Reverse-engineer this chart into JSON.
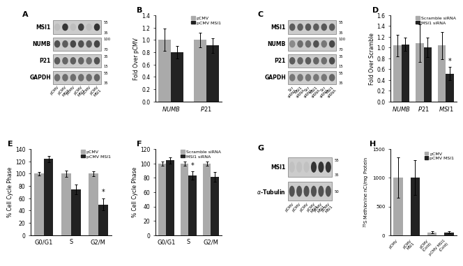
{
  "B": {
    "categories": [
      "NUMB",
      "P21"
    ],
    "pCMV": [
      1.0,
      1.0
    ],
    "pCMV_MSI1": [
      0.8,
      0.91
    ],
    "pCMV_err": [
      0.18,
      0.12
    ],
    "pCMV_MSI1_err": [
      0.1,
      0.12
    ],
    "ylabel": "Fold Over pCMV",
    "ylim": [
      0.0,
      1.4
    ],
    "yticks": [
      0.0,
      0.2,
      0.4,
      0.6,
      0.8,
      1.0,
      1.2,
      1.4
    ],
    "legend": [
      "pCMV",
      "pCMV MSI1"
    ],
    "colors": [
      "#aaaaaa",
      "#222222"
    ]
  },
  "D": {
    "categories": [
      "NUMB",
      "P21",
      "MSI1"
    ],
    "scramble": [
      1.04,
      1.08,
      1.04
    ],
    "MSI1_siRNA": [
      1.06,
      1.0,
      0.52
    ],
    "scramble_err": [
      0.2,
      0.35,
      0.25
    ],
    "MSI1_siRNA_err": [
      0.12,
      0.18,
      0.12
    ],
    "ylabel": "Fold Over Scramble",
    "ylim": [
      0.0,
      1.6
    ],
    "yticks": [
      0.0,
      0.2,
      0.4,
      0.6,
      0.8,
      1.0,
      1.2,
      1.4,
      1.6
    ],
    "legend": [
      "Scramble siRNA",
      "MSI1 siRNA"
    ],
    "colors": [
      "#aaaaaa",
      "#222222"
    ],
    "star_pos": [
      2
    ]
  },
  "E": {
    "categories": [
      "G0/G1",
      "S",
      "G2/M"
    ],
    "pCMV": [
      100,
      100,
      100
    ],
    "pCMV_MSI1": [
      124,
      74,
      50
    ],
    "pCMV_err": [
      3,
      5,
      4
    ],
    "pCMV_MSI1_err": [
      5,
      8,
      10
    ],
    "ylabel": "% Cell Cycle Phase",
    "ylim": [
      0,
      140
    ],
    "yticks": [
      0,
      20,
      40,
      60,
      80,
      100,
      120,
      140
    ],
    "legend": [
      "pCMV",
      "pCMV MSI1"
    ],
    "colors": [
      "#aaaaaa",
      "#222222"
    ],
    "star_pos": [
      2
    ]
  },
  "F": {
    "categories": [
      "G0/G1",
      "S",
      "G2/M"
    ],
    "scramble": [
      100,
      100,
      100
    ],
    "MSI1_siRNA": [
      104,
      83,
      81
    ],
    "scramble_err": [
      3,
      3,
      3
    ],
    "MSI1_siRNA_err": [
      4,
      6,
      7
    ],
    "ylabel": "% Cell Cycle Phase",
    "ylim": [
      0,
      120
    ],
    "yticks": [
      0,
      20,
      40,
      60,
      80,
      100,
      120
    ],
    "legend": [
      "Scramble siRNA",
      "MSI1 siRNA"
    ],
    "colors": [
      "#aaaaaa",
      "#222222"
    ],
    "star_pos": [
      1
    ]
  },
  "H": {
    "categories": [
      "pCMV",
      "pCMV\nMSI1",
      "pCMV\n(Cold)",
      "pCMV MSI1\n(Cold)"
    ],
    "values": [
      1000,
      1000,
      50,
      50
    ],
    "err": [
      350,
      300,
      20,
      20
    ],
    "ylabel": "$^{35}$S Methionine nCi/mg Protein",
    "ylim": [
      0,
      1500
    ],
    "yticks": [
      0,
      500,
      1000,
      1500
    ],
    "colors": [
      "#aaaaaa",
      "#222222",
      "#aaaaaa",
      "#222222"
    ],
    "legend": [
      "pCMV",
      "pCMV MSI1"
    ]
  },
  "wb_bg": "#cccccc",
  "wb_band_dark": "#111111",
  "figure_bg": "#ffffff"
}
